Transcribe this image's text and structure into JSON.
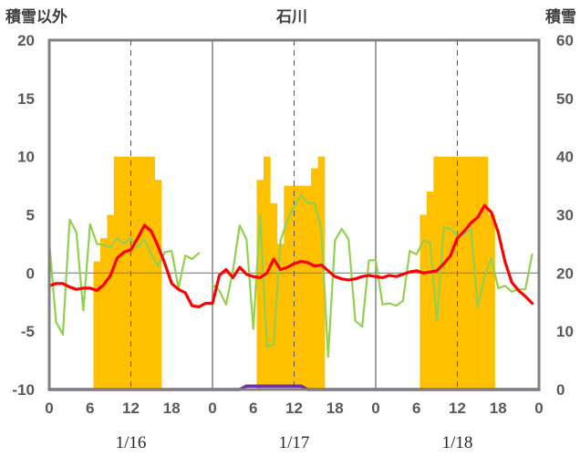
{
  "chart_data": {
    "type": "line",
    "title": "石川",
    "y_left_label": "積雪以外",
    "y_right_label": "積雪",
    "y_left_range": [
      -10,
      20
    ],
    "y_left_ticks": [
      "20",
      "15",
      "10",
      "5",
      "0",
      "-5",
      "-10"
    ],
    "y_right_range": [
      0,
      60
    ],
    "y_right_ticks": [
      "60",
      "50",
      "40",
      "30",
      "20",
      "10",
      "0"
    ],
    "x_range": [
      0,
      72
    ],
    "x_tick_values": [
      0,
      6,
      12,
      18,
      24,
      30,
      36,
      42,
      48,
      54,
      60,
      66,
      72
    ],
    "x_tick_labels": [
      "0",
      "6",
      "12",
      "18",
      "0",
      "6",
      "12",
      "18",
      "0",
      "6",
      "12",
      "18",
      "0"
    ],
    "day_labels": [
      "1/16",
      "1/17",
      "1/18"
    ],
    "grid": "dashed vertical at 12h, solid vertical day separators, solid horizontal at 0",
    "colors": {
      "bars": "#ffc000",
      "red_line": "#ff0000",
      "green_line": "#92d050",
      "purple_line": "#7030a0",
      "frame": "#808080"
    },
    "bars": {
      "axis": "right",
      "x": [
        7,
        8,
        9,
        10,
        11,
        12,
        13,
        14,
        15,
        16,
        31,
        32,
        33,
        34,
        35,
        36,
        37,
        38,
        39,
        40,
        55,
        56,
        57,
        58,
        59,
        60,
        61,
        62,
        63,
        64,
        65
      ],
      "values": [
        22,
        26,
        30,
        40,
        40,
        40,
        40,
        40,
        40,
        36,
        36,
        40,
        32,
        25,
        35,
        35,
        35,
        35,
        38,
        40,
        30,
        34,
        40,
        40,
        40,
        40,
        40,
        40,
        40,
        40,
        30
      ]
    },
    "red_line": {
      "axis": "left",
      "x": [
        0,
        1,
        2,
        3,
        4,
        5,
        6,
        7,
        8,
        9,
        10,
        11,
        12,
        13,
        14,
        15,
        16,
        17,
        18,
        19,
        20,
        21,
        22,
        23,
        24,
        25,
        26,
        27,
        28,
        29,
        30,
        31,
        32,
        33,
        34,
        35,
        36,
        37,
        38,
        39,
        40,
        41,
        42,
        43,
        44,
        45,
        46,
        47,
        48,
        49,
        50,
        51,
        52,
        53,
        54,
        55,
        56,
        57,
        58,
        59,
        60,
        61,
        62,
        63,
        64,
        65,
        66,
        67,
        68,
        69,
        70,
        71
      ],
      "y": [
        -1.1,
        -0.9,
        -0.9,
        -1.2,
        -1.4,
        -1.3,
        -1.3,
        -1.5,
        -1.0,
        -0.2,
        1.3,
        1.8,
        2.0,
        3.0,
        4.1,
        3.6,
        2.3,
        0.8,
        -0.9,
        -1.4,
        -1.7,
        -2.8,
        -2.9,
        -2.6,
        -2.6,
        -0.2,
        0.3,
        -0.4,
        0.5,
        -0.1,
        -0.3,
        -0.4,
        0.0,
        1.2,
        0.3,
        0.5,
        0.8,
        1.0,
        0.9,
        0.6,
        0.7,
        0.2,
        -0.3,
        -0.5,
        -0.6,
        -0.5,
        -0.3,
        -0.2,
        -0.3,
        -0.4,
        -0.2,
        -0.3,
        -0.1,
        0.1,
        0.2,
        0.0,
        0.1,
        0.2,
        0.8,
        1.5,
        3.0,
        3.6,
        4.3,
        4.8,
        5.8,
        5.2,
        3.5,
        1.0,
        -0.8,
        -1.5,
        -2.0,
        -2.6
      ]
    },
    "green_line": {
      "axis": "left",
      "x": [
        0,
        1,
        2,
        3,
        4,
        5,
        6,
        7,
        8,
        9,
        10,
        11,
        12,
        13,
        14,
        15,
        16,
        17,
        18,
        19,
        20,
        21,
        22,
        23,
        24,
        25,
        26,
        27,
        28,
        29,
        30,
        31,
        32,
        33,
        34,
        35,
        36,
        37,
        38,
        39,
        40,
        41,
        42,
        43,
        44,
        45,
        46,
        47,
        48,
        49,
        50,
        51,
        52,
        53,
        54,
        55,
        56,
        57,
        58,
        59,
        60,
        61,
        62,
        63,
        64,
        65,
        66,
        67,
        68,
        69,
        70,
        71
      ],
      "y": [
        2.6,
        -4.2,
        -5.3,
        4.6,
        3.5,
        -3.2,
        4.2,
        2.5,
        2.4,
        2.2,
        3.0,
        2.5,
        3.0,
        2.2,
        2.9,
        1.6,
        0.6,
        1.8,
        1.9,
        -1.3,
        1.5,
        1.2,
        1.7,
        null,
        -1.0,
        -1.5,
        -2.7,
        0.2,
        4.1,
        2.9,
        -4.8,
        5.0,
        -6.3,
        -6.1,
        2.8,
        4.5,
        5.7,
        6.7,
        6.0,
        6.0,
        3.8,
        -7.2,
        2.8,
        3.8,
        2.9,
        -4.1,
        -4.6,
        1.1,
        1.1,
        -2.7,
        -2.6,
        -2.8,
        -2.4,
        1.9,
        1.6,
        2.8,
        2.6,
        -4.1,
        3.9,
        3.8,
        3.2,
        3.3,
        3.8,
        -2.9,
        -0.3,
        1.3,
        -1.3,
        -1.1,
        -1.6,
        -1.4,
        -1.4,
        1.6
      ]
    },
    "purple_line": {
      "axis": "right",
      "x": [
        0,
        28,
        29,
        37,
        38,
        72
      ],
      "values": [
        0,
        0,
        0.6,
        0.6,
        0,
        0
      ]
    }
  }
}
